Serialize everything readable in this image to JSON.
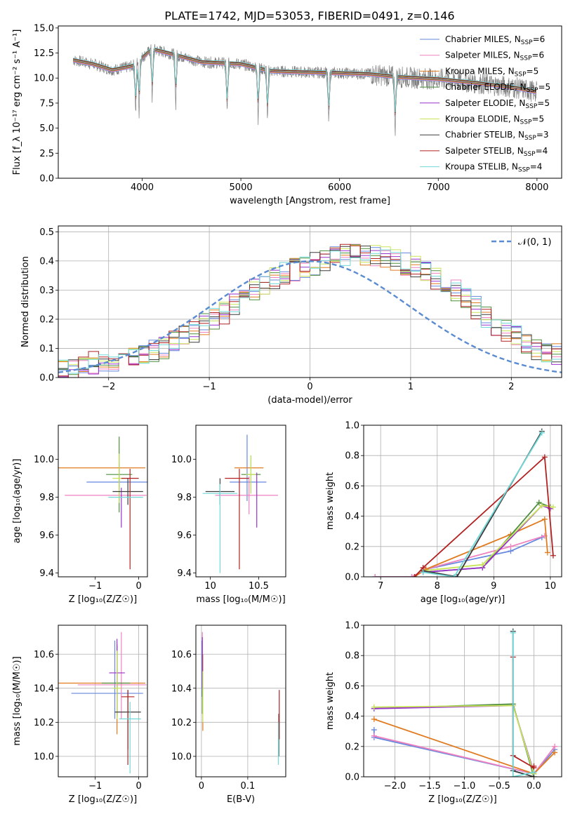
{
  "figure": {
    "title": "PLATE=1742, MJD=53053, FIBERID=0491, z=0.146"
  },
  "chart_data": [
    {
      "id": "spectrum",
      "type": "line",
      "xlabel": "wavelength [Angstrom, rest frame]",
      "ylabel": "Flux [f_λ 10⁻¹⁷ erg cm⁻² s⁻¹ A⁻¹]",
      "xlim": [
        3150,
        8250
      ],
      "ylim": [
        0,
        15.2
      ],
      "xticks": [
        4000,
        5000,
        6000,
        7000,
        8000
      ],
      "yticks": [
        0.0,
        2.5,
        5.0,
        7.5,
        10.0,
        12.5,
        15.0
      ],
      "grid": false,
      "legend": "top-right",
      "data_series": {
        "name": "",
        "color": "#808080"
      },
      "continuum": {
        "x": [
          3300,
          3500,
          3700,
          3900,
          4100,
          4300,
          4600,
          5000,
          5300,
          5600,
          6000,
          6300,
          6600,
          7000,
          7400,
          7800,
          8000
        ],
        "y": [
          11.8,
          11.4,
          10.8,
          11.2,
          12.9,
          12.4,
          11.6,
          11.4,
          10.7,
          10.6,
          10.5,
          10.4,
          10.1,
          9.9,
          9.5,
          9.0,
          8.6
        ]
      },
      "absorption_lines": [
        3934,
        3969,
        4102,
        4340,
        4861,
        5175,
        5270,
        5890,
        6563
      ],
      "series": [
        {
          "name": "Chabrier MILES, N_SSP=6",
          "color": "#6688dd"
        },
        {
          "name": "Salpeter MILES, N_SSP=6",
          "color": "#ee82c0"
        },
        {
          "name": "Kroupa MILES, N_SSP=5",
          "color": "#e07b20"
        },
        {
          "name": "Chabrier ELODIE, N_SSP=5",
          "color": "#4f8f3f"
        },
        {
          "name": "Salpeter ELODIE, N_SSP=5",
          "color": "#9932cc"
        },
        {
          "name": "Kroupa ELODIE, N_SSP=5",
          "color": "#c8e55a"
        },
        {
          "name": "Chabrier STELIB, N_SSP=3",
          "color": "#3c3c3c"
        },
        {
          "name": "Salpeter STELIB, N_SSP=4",
          "color": "#b22222"
        },
        {
          "name": "Kroupa STELIB, N_SSP=4",
          "color": "#70d8d8"
        }
      ]
    },
    {
      "id": "residuals",
      "type": "line",
      "xlabel": "(data-model)/error",
      "ylabel": "Normed distribution",
      "xlim": [
        -2.5,
        2.5
      ],
      "ylim": [
        0,
        0.52
      ],
      "xticks": [
        -2,
        -1,
        0,
        1,
        2
      ],
      "xtick_labels": [
        "−2",
        "−1",
        "0",
        "1",
        "2"
      ],
      "yticks": [
        0.0,
        0.1,
        0.2,
        0.3,
        0.4,
        0.5
      ],
      "grid": true,
      "legend": "top-right",
      "normal_curve": {
        "name": "𝒩(0, 1)",
        "color": "#5b8bd0"
      },
      "hist_bin_width": 0.1,
      "hist_x_start": -2.5,
      "hist_base": [
        0.03,
        0.03,
        0.04,
        0.05,
        0.05,
        0.06,
        0.06,
        0.07,
        0.08,
        0.09,
        0.1,
        0.12,
        0.14,
        0.16,
        0.18,
        0.2,
        0.22,
        0.25,
        0.28,
        0.3,
        0.32,
        0.34,
        0.36,
        0.37,
        0.38,
        0.39,
        0.4,
        0.41,
        0.42,
        0.42,
        0.42,
        0.42,
        0.41,
        0.4,
        0.39,
        0.38,
        0.36,
        0.34,
        0.32,
        0.3,
        0.27,
        0.24,
        0.21,
        0.18,
        0.16,
        0.14,
        0.12,
        0.1,
        0.09,
        0.08
      ],
      "series_colors": [
        "#6688dd",
        "#ee82c0",
        "#e07b20",
        "#4f8f3f",
        "#9932cc",
        "#c8e55a",
        "#3c3c3c",
        "#b22222",
        "#70d8d8"
      ]
    },
    {
      "id": "age-vs-Z",
      "type": "scatter",
      "xlabel": "Z [log₁₀(Z/Z☉)]",
      "ylabel": "age  [log₁₀(age/yr)]",
      "xlim": [
        -1.85,
        0.2
      ],
      "ylim": [
        9.38,
        10.18
      ],
      "xticks": [
        -1,
        0
      ],
      "xtick_labels": [
        "−1",
        "0"
      ],
      "yticks": [
        9.4,
        9.6,
        9.8,
        10.0
      ],
      "grid": false,
      "points": [
        {
          "x": -0.45,
          "xerr": [
            0.75,
            0.7
          ],
          "y": 9.88,
          "yerr": [
            0.1,
            0.1
          ],
          "color": "#6688dd"
        },
        {
          "x": -0.4,
          "xerr": [
            1.3,
            0.58
          ],
          "y": 9.81,
          "yerr": [
            0.01,
            0.0
          ],
          "color": "#ee82c0"
        },
        {
          "x": -0.5,
          "xerr": [
            1.35,
            0.65
          ],
          "y": 9.955,
          "yerr": [
            0.0,
            0.0
          ],
          "color": "#e07b20"
        },
        {
          "x": -0.45,
          "xerr": [
            0.3,
            0.3
          ],
          "y": 9.92,
          "yerr": [
            0.2,
            0.2
          ],
          "color": "#4f8f3f"
        },
        {
          "x": -0.4,
          "xerr": [
            0.0,
            0.0
          ],
          "y": 9.85,
          "yerr": [
            0.21,
            0.0
          ],
          "color": "#9932cc"
        },
        {
          "x": -0.45,
          "xerr": [
            0.15,
            0.15
          ],
          "y": 9.9,
          "yerr": [
            0.13,
            0.13
          ],
          "color": "#c8e55a"
        },
        {
          "x": -0.25,
          "xerr": [
            0.35,
            0.35
          ],
          "y": 9.83,
          "yerr": [
            0.07,
            0.07
          ],
          "color": "#3c3c3c"
        },
        {
          "x": -0.2,
          "xerr": [
            0.2,
            0.2
          ],
          "y": 9.9,
          "yerr": [
            0.48,
            0.05
          ],
          "color": "#b22222"
        },
        {
          "x": -0.3,
          "xerr": [
            0.4,
            0.4
          ],
          "y": 9.8,
          "yerr": [
            0.0,
            0.0
          ],
          "color": "#70d8d8"
        }
      ]
    },
    {
      "id": "age-vs-mass",
      "type": "scatter",
      "xlabel": "mass [log₁₀(M/M☉)]",
      "ylabel": "",
      "xlim": [
        9.85,
        10.78
      ],
      "ylim": [
        9.38,
        10.18
      ],
      "xticks": [
        10.0,
        10.5
      ],
      "yticks": [
        9.4,
        9.6,
        9.8,
        10.0
      ],
      "grid": false,
      "points": [
        {
          "x": 10.38,
          "xerr": [
            0.18,
            0.2
          ],
          "y": 9.88,
          "yerr": [
            0.1,
            0.25
          ],
          "color": "#6688dd"
        },
        {
          "x": 10.4,
          "xerr": [
            0.35,
            0.3
          ],
          "y": 9.81,
          "yerr": [
            0.1,
            0.1
          ],
          "color": "#ee82c0"
        },
        {
          "x": 10.4,
          "xerr": [
            0.15,
            0.15
          ],
          "y": 9.955,
          "yerr": [
            0.0,
            0.0
          ],
          "color": "#e07b20"
        },
        {
          "x": 10.42,
          "xerr": [
            0.1,
            0.1
          ],
          "y": 9.92,
          "yerr": [
            0.1,
            0.1
          ],
          "color": "#4f8f3f"
        },
        {
          "x": 10.48,
          "xerr": [
            0.0,
            0.0
          ],
          "y": 9.8,
          "yerr": [
            0.16,
            0.13
          ],
          "color": "#9932cc"
        },
        {
          "x": 10.42,
          "xerr": [
            0.05,
            0.05
          ],
          "y": 9.92,
          "yerr": [
            0.1,
            0.1
          ],
          "color": "#c8e55a"
        },
        {
          "x": 10.1,
          "xerr": [
            0.15,
            0.15
          ],
          "y": 9.83,
          "yerr": [
            0.07,
            0.07
          ],
          "color": "#3c3c3c"
        },
        {
          "x": 10.3,
          "xerr": [
            0.15,
            0.1
          ],
          "y": 9.9,
          "yerr": [
            0.48,
            0.05
          ],
          "color": "#b22222"
        },
        {
          "x": 10.1,
          "xerr": [
            0.18,
            0.18
          ],
          "y": 9.82,
          "yerr": [
            0.42,
            0.05
          ],
          "color": "#70d8d8"
        }
      ]
    },
    {
      "id": "mass-weight-vs-age",
      "type": "line",
      "xlabel": "age  [log₁₀(age/yr)]",
      "ylabel": "mass weight",
      "xlim": [
        6.7,
        10.2
      ],
      "ylim": [
        0,
        1.0
      ],
      "xticks": [
        7,
        8,
        9,
        10
      ],
      "yticks": [
        0.0,
        0.2,
        0.4,
        0.6,
        0.8,
        1.0
      ],
      "grid": true,
      "series": [
        {
          "name": "Chabrier MILES",
          "color": "#6688dd",
          "x": [
            6.9,
            7.55,
            7.8,
            9.3,
            9.85
          ],
          "y": [
            0.0,
            0.0,
            0.05,
            0.17,
            0.26
          ]
        },
        {
          "name": "Salpeter MILES",
          "color": "#ee82c0",
          "x": [
            6.9,
            7.55,
            7.8,
            9.3,
            9.9
          ],
          "y": [
            0.0,
            0.0,
            0.05,
            0.2,
            0.27
          ]
        },
        {
          "name": "Kroupa MILES",
          "color": "#e07b20",
          "x": [
            7.6,
            7.8,
            9.3,
            9.9,
            9.95
          ],
          "y": [
            0.0,
            0.05,
            0.28,
            0.38,
            0.16
          ]
        },
        {
          "name": "Chabrier ELODIE",
          "color": "#4f8f3f",
          "x": [
            7.75,
            8.8,
            9.8,
            10.0
          ],
          "y": [
            0.03,
            0.06,
            0.49,
            0.46
          ]
        },
        {
          "name": "Salpeter ELODIE",
          "color": "#9932cc",
          "x": [
            7.75,
            8.8,
            9.85,
            10.0
          ],
          "y": [
            0.03,
            0.06,
            0.47,
            0.45
          ]
        },
        {
          "name": "Kroupa ELODIE",
          "color": "#c8e55a",
          "x": [
            7.75,
            8.8,
            9.85,
            10.05
          ],
          "y": [
            0.04,
            0.08,
            0.47,
            0.46
          ]
        },
        {
          "name": "Chabrier STELIB",
          "color": "#3c3c3c",
          "x": [
            7.75,
            8.35,
            9.85
          ],
          "y": [
            0.04,
            0.0,
            0.96
          ]
        },
        {
          "name": "Salpeter STELIB",
          "color": "#b22222",
          "x": [
            7.6,
            7.75,
            9.9,
            10.05
          ],
          "y": [
            0.0,
            0.06,
            0.79,
            0.14
          ]
        },
        {
          "name": "Kroupa STELIB",
          "color": "#70d8d8",
          "x": [
            7.75,
            8.3,
            9.85
          ],
          "y": [
            0.03,
            0.0,
            0.95
          ]
        }
      ]
    },
    {
      "id": "mass-vs-Z",
      "type": "scatter",
      "xlabel": "Z [log₁₀(Z/Z☉)]",
      "ylabel": "mass [log₁₀(M/M☉)]",
      "xlim": [
        -1.85,
        0.2
      ],
      "ylim": [
        9.88,
        10.77
      ],
      "xticks": [
        -1,
        0
      ],
      "xtick_labels": [
        "−1",
        "0"
      ],
      "yticks": [
        10.0,
        10.2,
        10.4,
        10.6
      ],
      "grid": true,
      "points": [
        {
          "x": -0.55,
          "xerr": [
            1.0,
            0.65
          ],
          "y": 10.37,
          "yerr": [
            0.15,
            0.31
          ],
          "color": "#6688dd"
        },
        {
          "x": -0.4,
          "xerr": [
            1.0,
            0.58
          ],
          "y": 10.42,
          "yerr": [
            0.2,
            0.31
          ],
          "color": "#ee82c0"
        },
        {
          "x": -0.5,
          "xerr": [
            1.35,
            0.65
          ],
          "y": 10.43,
          "yerr": [
            0.3,
            0.23
          ],
          "color": "#e07b20"
        },
        {
          "x": -0.5,
          "xerr": [
            0.35,
            0.3
          ],
          "y": 10.43,
          "yerr": [
            0.2,
            0.22
          ],
          "color": "#4f8f3f"
        },
        {
          "x": -0.5,
          "xerr": [
            0.18,
            0.18
          ],
          "y": 10.49,
          "yerr": [
            0.25,
            0.2
          ],
          "color": "#9932cc"
        },
        {
          "x": -0.5,
          "xerr": [
            0.1,
            0.1
          ],
          "y": 10.4,
          "yerr": [
            0.18,
            0.22
          ],
          "color": "#c8e55a"
        },
        {
          "x": -0.25,
          "xerr": [
            0.3,
            0.3
          ],
          "y": 10.26,
          "yerr": [
            0.22,
            0.13
          ],
          "color": "#3c3c3c"
        },
        {
          "x": -0.25,
          "xerr": [
            0.15,
            0.15
          ],
          "y": 10.35,
          "yerr": [
            0.4,
            0.04
          ],
          "color": "#b22222"
        },
        {
          "x": -0.2,
          "xerr": [
            0.25,
            0.25
          ],
          "y": 10.22,
          "yerr": [
            0.32,
            0.1
          ],
          "color": "#70d8d8"
        }
      ]
    },
    {
      "id": "mass-vs-ebv",
      "type": "scatter",
      "xlabel": "E(B-V)",
      "ylabel": "",
      "xlim": [
        -0.012,
        0.182
      ],
      "ylim": [
        9.88,
        10.77
      ],
      "xticks": [
        0.0,
        0.1
      ],
      "yticks": [
        10.0,
        10.2,
        10.4,
        10.6
      ],
      "grid": true,
      "points": [
        {
          "x": 0.001,
          "xerr": [
            0.0,
            0.0
          ],
          "y": 10.45,
          "yerr": [
            0.1,
            0.23
          ],
          "color": "#6688dd"
        },
        {
          "x": 0.002,
          "xerr": [
            0.0,
            0.0
          ],
          "y": 10.45,
          "yerr": [
            0.1,
            0.28
          ],
          "color": "#ee82c0"
        },
        {
          "x": 0.003,
          "xerr": [
            0.0,
            0.0
          ],
          "y": 10.4,
          "yerr": [
            0.25,
            0.2
          ],
          "color": "#e07b20"
        },
        {
          "x": 0.002,
          "xerr": [
            0.0,
            0.0
          ],
          "y": 10.5,
          "yerr": [
            0.25,
            0.1
          ],
          "color": "#4f8f3f"
        },
        {
          "x": 0.002,
          "xerr": [
            0.0,
            0.0
          ],
          "y": 10.6,
          "yerr": [
            0.2,
            0.1
          ],
          "color": "#9932cc"
        },
        {
          "x": 0.003,
          "xerr": [
            0.0,
            0.0
          ],
          "y": 10.4,
          "yerr": [
            0.2,
            0.1
          ],
          "color": "#c8e55a"
        },
        {
          "x": 0.167,
          "xerr": [
            0.0,
            0.0
          ],
          "y": 10.1,
          "yerr": [
            0.1,
            0.15
          ],
          "color": "#3c3c3c"
        },
        {
          "x": 0.168,
          "xerr": [
            0.0,
            0.0
          ],
          "y": 10.15,
          "yerr": [
            0.05,
            0.24
          ],
          "color": "#b22222"
        },
        {
          "x": 0.166,
          "xerr": [
            0.0,
            0.0
          ],
          "y": 10.1,
          "yerr": [
            0.15,
            0.1
          ],
          "color": "#70d8d8"
        }
      ]
    },
    {
      "id": "mass-weight-vs-Z",
      "type": "line",
      "xlabel": "Z [log₁₀(Z/Z☉)]",
      "ylabel": "mass weight",
      "xlim": [
        -2.45,
        0.4
      ],
      "ylim": [
        0,
        1.0
      ],
      "xticks": [
        -2.0,
        -1.5,
        -1.0,
        -0.5,
        0.0
      ],
      "xtick_labels": [
        "−2.0",
        "−1.5",
        "−1.0",
        "−0.5",
        "0.0"
      ],
      "yticks": [
        0.0,
        0.2,
        0.4,
        0.6,
        0.8,
        1.0
      ],
      "grid": true,
      "series": [
        {
          "name": "Chabrier MILES",
          "color": "#6688dd",
          "x": [
            -2.3,
            -2.3,
            0.0,
            0.3
          ],
          "y": [
            0.31,
            0.26,
            0.02,
            0.18
          ]
        },
        {
          "name": "Salpeter MILES",
          "color": "#ee82c0",
          "x": [
            -2.3,
            0.0,
            0.3
          ],
          "y": [
            0.27,
            0.02,
            0.2
          ]
        },
        {
          "name": "Kroupa MILES",
          "color": "#e07b20",
          "x": [
            -2.3,
            0.0,
            0.3
          ],
          "y": [
            0.38,
            0.02,
            0.16
          ]
        },
        {
          "name": "Chabrier ELODIE",
          "color": "#4f8f3f",
          "x": [
            -2.3,
            -0.3,
            0.0
          ],
          "y": [
            0.45,
            0.48,
            0.0
          ]
        },
        {
          "name": "Salpeter ELODIE",
          "color": "#9932cc",
          "x": [
            -2.3,
            -0.3,
            0.0
          ],
          "y": [
            0.45,
            0.47,
            0.03
          ]
        },
        {
          "name": "Kroupa ELODIE",
          "color": "#c8e55a",
          "x": [
            -2.3,
            -0.3,
            0.0
          ],
          "y": [
            0.46,
            0.47,
            0.02
          ]
        },
        {
          "name": "Chabrier STELIB",
          "color": "#3c3c3c",
          "x": [
            -0.3,
            -0.3,
            0.0
          ],
          "y": [
            0.96,
            0.04,
            0.0
          ]
        },
        {
          "name": "Salpeter STELIB",
          "color": "#b22222",
          "x": [
            -0.3,
            -0.3,
            0.0,
            0.0
          ],
          "y": [
            0.79,
            0.14,
            0.06,
            0.07
          ]
        },
        {
          "name": "Kroupa STELIB",
          "color": "#70d8d8",
          "x": [
            -0.3,
            -0.3,
            0.0
          ],
          "y": [
            0.95,
            0.0,
            0.03
          ]
        }
      ]
    }
  ]
}
